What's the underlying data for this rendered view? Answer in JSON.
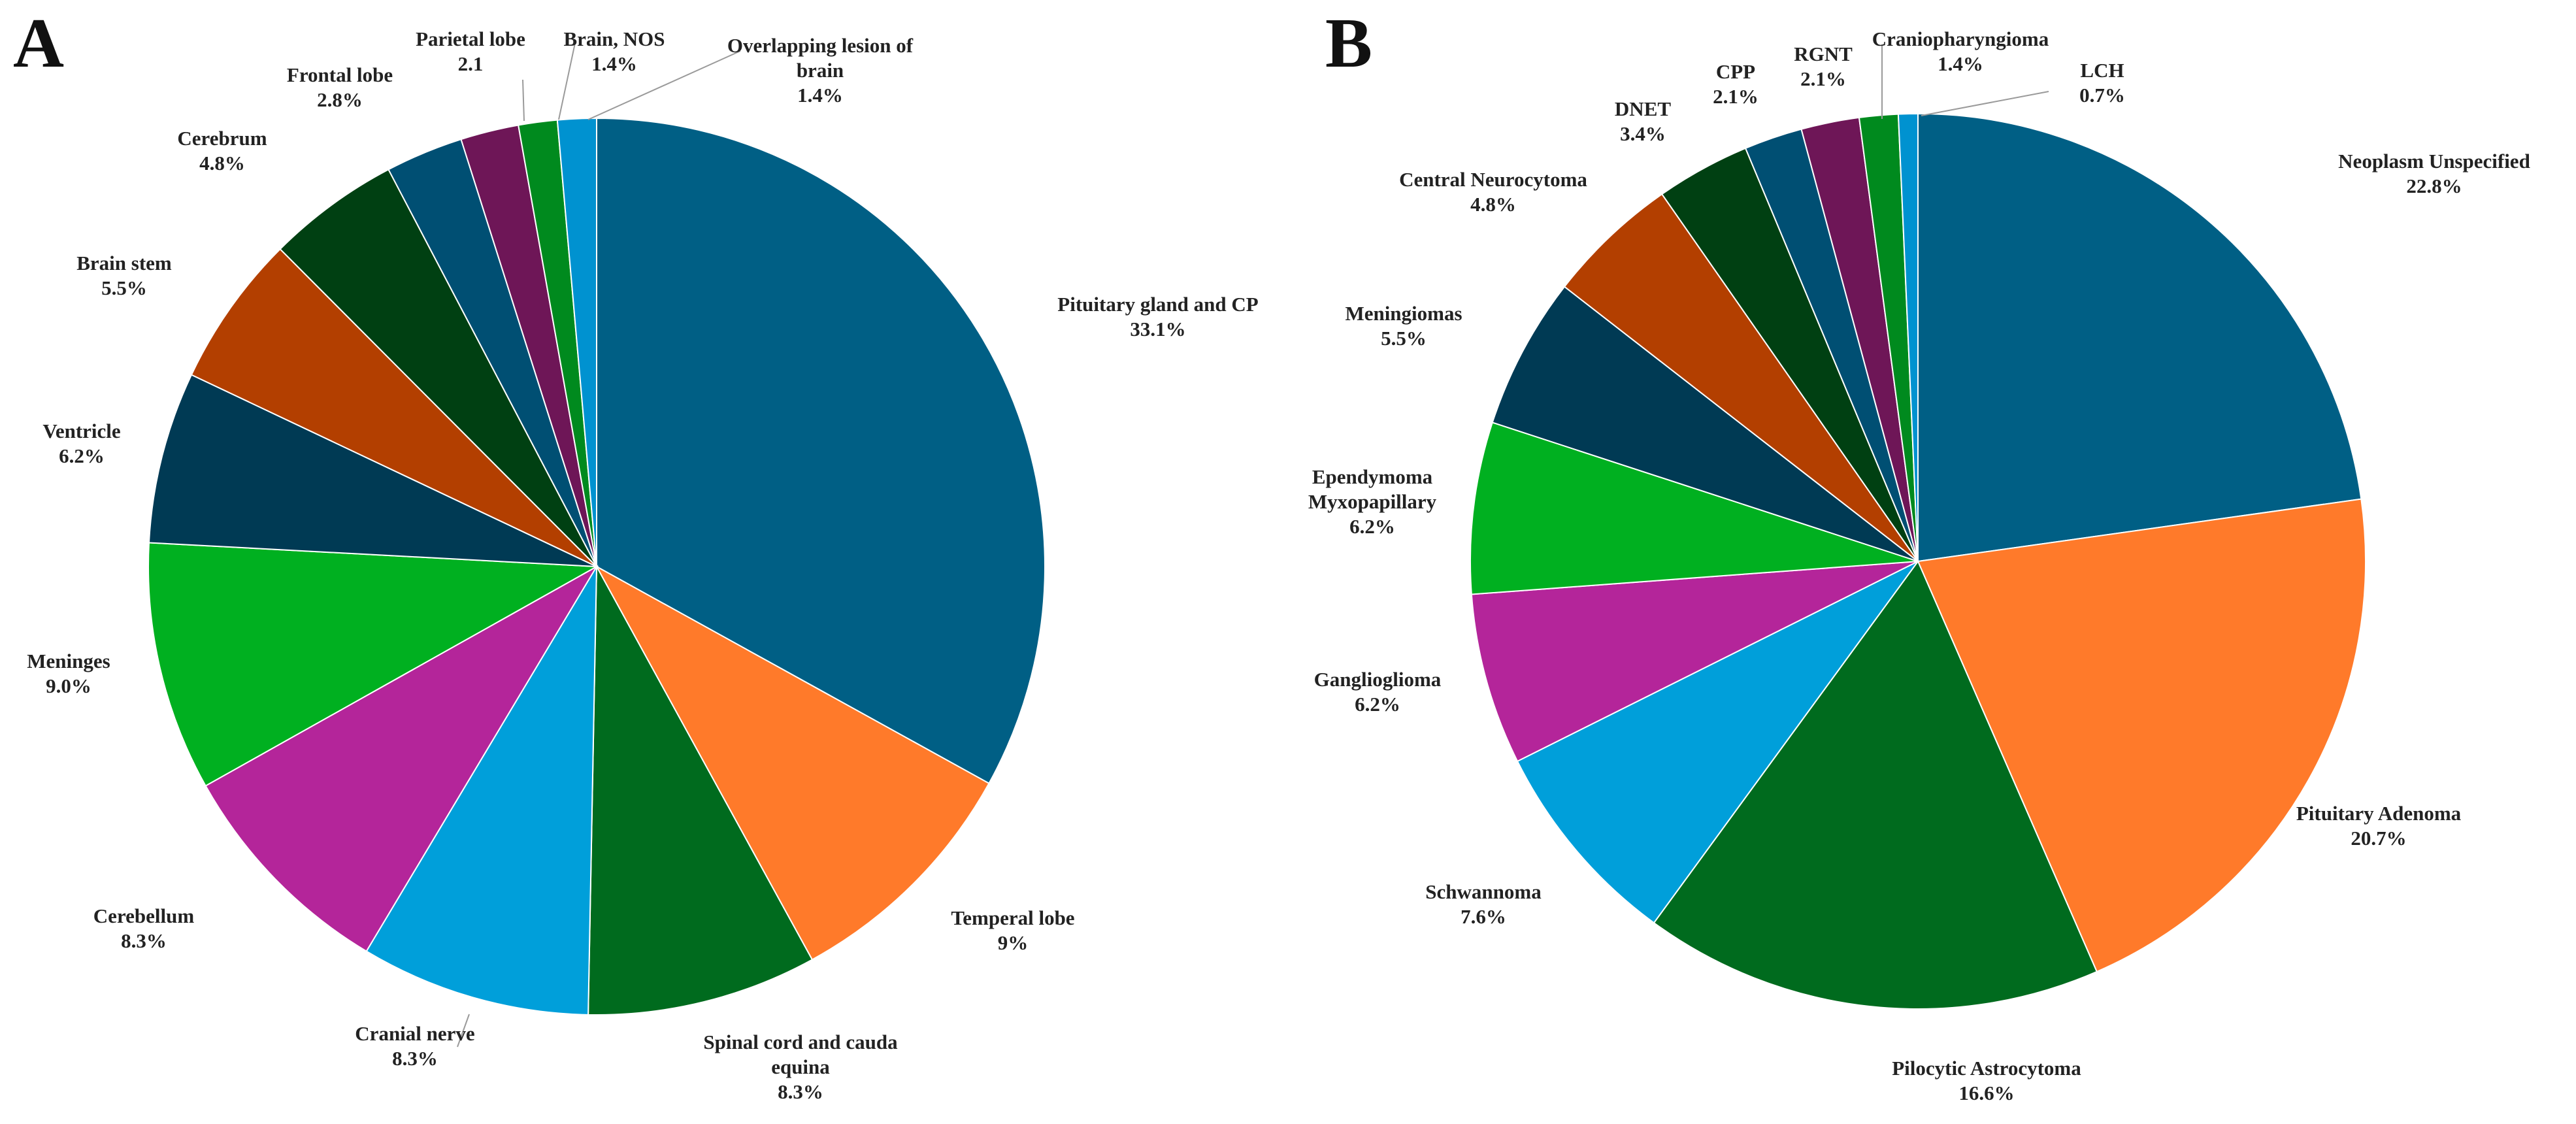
{
  "chart_data": [
    {
      "type": "pie",
      "panel_label": "A",
      "start_angle_deg": 0,
      "direction": "clockwise",
      "slices": [
        {
          "label": [
            "Pituitary gland and CP"
          ],
          "value_label": "33.1%",
          "value": 33.1,
          "color": "#005F85"
        },
        {
          "label": [
            "Temperal lobe"
          ],
          "value_label": "9%",
          "value": 9.0,
          "color": "#FF7A2A"
        },
        {
          "label": [
            "Spinal cord and cauda",
            "equina"
          ],
          "value_label": "8.3%",
          "value": 8.3,
          "color": "#006B1E"
        },
        {
          "label": [
            "Cranial nerve"
          ],
          "value_label": "8.3%",
          "value": 8.3,
          "color": "#009FDA"
        },
        {
          "label": [
            "Cerebellum"
          ],
          "value_label": "8.3%",
          "value": 8.3,
          "color": "#B4259A"
        },
        {
          "label": [
            "Meninges"
          ],
          "value_label": "9.0%",
          "value": 9.0,
          "color": "#00B020"
        },
        {
          "label": [
            "Ventricle"
          ],
          "value_label": "6.2%",
          "value": 6.2,
          "color": "#003A54"
        },
        {
          "label": [
            "Brain stem"
          ],
          "value_label": "5.5%",
          "value": 5.5,
          "color": "#B33F00"
        },
        {
          "label": [
            "Cerebrum"
          ],
          "value_label": "4.8%",
          "value": 4.8,
          "color": "#004012"
        },
        {
          "label": [
            "Frontal lobe"
          ],
          "value_label": "2.8%",
          "value": 2.8,
          "color": "#004F73"
        },
        {
          "label": [
            "Parietal lobe"
          ],
          "value_label": "2.1",
          "value": 2.1,
          "color": "#6E1657"
        },
        {
          "label": [
            "Brain, NOS"
          ],
          "value_label": "1.4%",
          "value": 1.4,
          "color": "#008A1E"
        },
        {
          "label": [
            "Overlapping lesion of",
            "brain"
          ],
          "value_label": "1.4%",
          "value": 1.4,
          "color": "#0092D0"
        }
      ]
    },
    {
      "type": "pie",
      "panel_label": "B",
      "start_angle_deg": 0,
      "direction": "clockwise",
      "slices": [
        {
          "label": [
            "Neoplasm Unspecified"
          ],
          "value_label": "22.8%",
          "value": 22.8,
          "color": "#005F85"
        },
        {
          "label": [
            "Pituitary Adenoma"
          ],
          "value_label": "20.7%",
          "value": 20.7,
          "color": "#FF7A2A"
        },
        {
          "label": [
            "Pilocytic Astrocytoma"
          ],
          "value_label": "16.6%",
          "value": 16.6,
          "color": "#006B1E"
        },
        {
          "label": [
            "Schwannoma"
          ],
          "value_label": "7.6%",
          "value": 7.6,
          "color": "#009FDA"
        },
        {
          "label": [
            "Ganglioglioma"
          ],
          "value_label": "6.2%",
          "value": 6.2,
          "color": "#B4259A"
        },
        {
          "label": [
            "Ependymoma",
            "Myxopapillary"
          ],
          "value_label": "6.2%",
          "value": 6.2,
          "color": "#00B020"
        },
        {
          "label": [
            "Meningiomas"
          ],
          "value_label": "5.5%",
          "value": 5.5,
          "color": "#003A54"
        },
        {
          "label": [
            "Central Neurocytoma"
          ],
          "value_label": "4.8%",
          "value": 4.8,
          "color": "#B33F00"
        },
        {
          "label": [
            "DNET"
          ],
          "value_label": "3.4%",
          "value": 3.4,
          "color": "#004012"
        },
        {
          "label": [
            "CPP"
          ],
          "value_label": "2.1%",
          "value": 2.1,
          "color": "#004F73"
        },
        {
          "label": [
            "RGNT"
          ],
          "value_label": "2.1%",
          "value": 2.1,
          "color": "#6E1657"
        },
        {
          "label": [
            "Craniopharyngioma"
          ],
          "value_label": "1.4%",
          "value": 1.4,
          "color": "#008A1E"
        },
        {
          "label": [
            "LCH"
          ],
          "value_label": "0.7%",
          "value": 0.7,
          "color": "#0092D0"
        }
      ]
    }
  ]
}
